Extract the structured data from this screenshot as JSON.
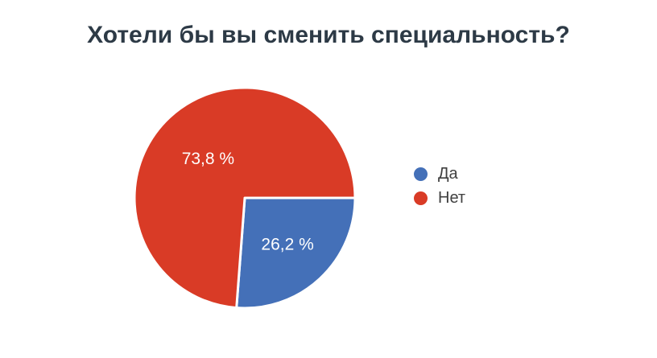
{
  "title": {
    "text": "Хотели бы вы сменить специальность?",
    "color": "#2d3a46"
  },
  "chart_data": {
    "type": "pie",
    "title": "Хотели бы вы сменить специальность?",
    "slices": [
      {
        "id": "yes",
        "label": "Да",
        "value": 26.2,
        "display_label": "26,2 %",
        "color": "#4470b8",
        "label_r_frac": 0.57
      },
      {
        "id": "no",
        "label": "Нет",
        "value": 73.8,
        "display_label": "73,8 %",
        "color": "#d93b26",
        "label_r_frac": 0.49
      }
    ],
    "start_angle_deg": 0,
    "direction": "clockwise",
    "legend_position": "right",
    "legend_text_color": "#404040",
    "slice_label_color": "#ffffff",
    "separator_color": "#ffffff"
  }
}
